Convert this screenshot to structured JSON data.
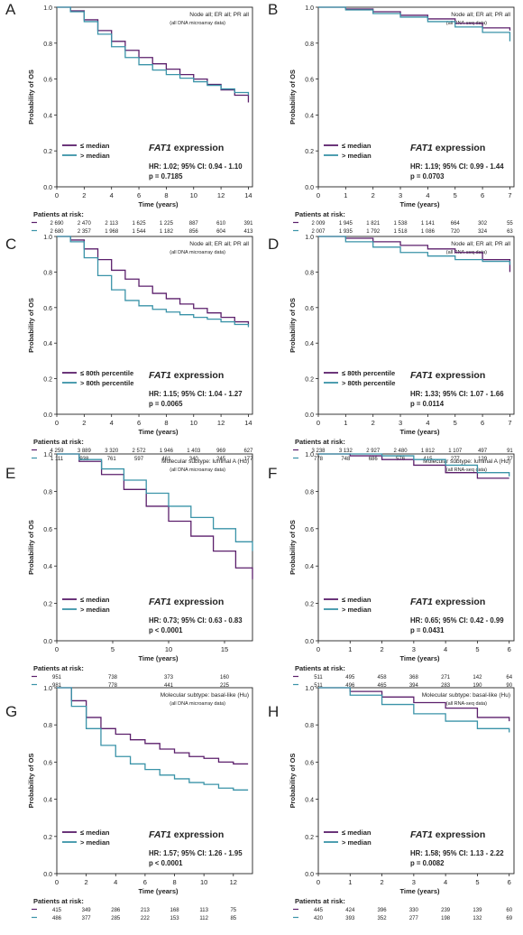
{
  "figure": {
    "expression_word": "expression",
    "colors": {
      "purple": "#5b1f6b",
      "teal": "#3a93a8"
    }
  },
  "chart_data": [
    {
      "id": "A",
      "letter": "A",
      "type": "line",
      "title_line1": "Node all; ER all; PR all",
      "title_line2": "(all DNA microarray data)",
      "xlabel": "Time (years)",
      "ylabel": "Probability of OS",
      "xlim": [
        0,
        14.3
      ],
      "ylim": [
        0,
        1
      ],
      "xticks": [
        0,
        2,
        4,
        6,
        8,
        10,
        12,
        14
      ],
      "yticks": [
        0,
        0.2,
        0.4,
        0.6,
        0.8,
        1.0
      ],
      "ytick_labels": [
        "0.0",
        "0.2",
        "0.4",
        "0.6",
        "0.8",
        "1.0"
      ],
      "series": [
        {
          "name": "≤ median",
          "color": "#5b1f6b",
          "x": [
            0,
            1,
            2,
            3,
            4,
            5,
            6,
            7,
            8,
            9,
            10,
            11,
            12,
            13,
            14
          ],
          "y": [
            1,
            0.98,
            0.93,
            0.87,
            0.81,
            0.76,
            0.72,
            0.685,
            0.655,
            0.625,
            0.6,
            0.57,
            0.54,
            0.51,
            0.47
          ]
        },
        {
          "name": "> median",
          "color": "#3a93a8",
          "x": [
            0,
            1,
            2,
            3,
            4,
            5,
            6,
            7,
            8,
            9,
            10,
            11,
            12,
            13,
            14
          ],
          "y": [
            1,
            0.975,
            0.92,
            0.85,
            0.78,
            0.72,
            0.68,
            0.65,
            0.625,
            0.605,
            0.585,
            0.565,
            0.545,
            0.525,
            0.51
          ]
        }
      ],
      "gene": "FAT1",
      "hr": "HR: 1.02; 95% CI: 0.94 - 1.10",
      "p": "p = 0.7185",
      "risk_row1": [
        "2 690",
        "2 470",
        "2 113",
        "1 625",
        "1 225",
        "887",
        "610",
        "391"
      ],
      "risk_row2": [
        "2 680",
        "2 357",
        "1 968",
        "1 544",
        "1 182",
        "856",
        "604",
        "413"
      ]
    },
    {
      "id": "B",
      "letter": "B",
      "type": "line",
      "title_line1": "Node all; ER all; PR all",
      "title_line2": "(all RNA-seq data)",
      "xlabel": "Time (years)",
      "ylabel": "Probability of OS",
      "xlim": [
        0,
        7.15
      ],
      "ylim": [
        0,
        1
      ],
      "xticks": [
        0,
        1,
        2,
        3,
        4,
        5,
        6,
        7
      ],
      "yticks": [
        0,
        0.2,
        0.4,
        0.6,
        0.8,
        1.0
      ],
      "ytick_labels": [
        "0.0",
        "0.2",
        "0.4",
        "0.6",
        "0.8",
        "1.0"
      ],
      "series": [
        {
          "name": "≤ median",
          "color": "#5b1f6b",
          "x": [
            0,
            1,
            2,
            3,
            4,
            5,
            6,
            7
          ],
          "y": [
            1,
            0.99,
            0.975,
            0.955,
            0.935,
            0.91,
            0.885,
            0.87
          ]
        },
        {
          "name": "> median",
          "color": "#3a93a8",
          "x": [
            0,
            1,
            2,
            3,
            4,
            5,
            6,
            7
          ],
          "y": [
            1,
            0.985,
            0.965,
            0.945,
            0.92,
            0.89,
            0.86,
            0.81
          ]
        }
      ],
      "gene": "FAT1",
      "hr": "HR: 1.19; 95% CI: 0.99 - 1.44",
      "p": "p = 0.0703",
      "risk_row1": [
        "2 009",
        "1 945",
        "1 821",
        "1 538",
        "1 141",
        "664",
        "302",
        "55"
      ],
      "risk_row2": [
        "2 007",
        "1 935",
        "1 792",
        "1 518",
        "1 086",
        "720",
        "324",
        "63"
      ]
    },
    {
      "id": "C",
      "letter": "C",
      "type": "line",
      "title_line1": "Node all; ER all; PR all",
      "title_line2": "(all DNA microarray data)",
      "xlabel": "Time (years)",
      "ylabel": "Probability of OS",
      "xlim": [
        0,
        14.3
      ],
      "ylim": [
        0,
        1
      ],
      "xticks": [
        0,
        2,
        4,
        6,
        8,
        10,
        12,
        14
      ],
      "yticks": [
        0,
        0.2,
        0.4,
        0.6,
        0.8,
        1.0
      ],
      "ytick_labels": [
        "0.0",
        "0.2",
        "0.4",
        "0.6",
        "0.8",
        "1.0"
      ],
      "series": [
        {
          "name": "≤ 80th percentile",
          "color": "#5b1f6b",
          "x": [
            0,
            1,
            2,
            3,
            4,
            5,
            6,
            7,
            8,
            9,
            10,
            11,
            12,
            13,
            14
          ],
          "y": [
            1,
            0.98,
            0.93,
            0.87,
            0.81,
            0.76,
            0.72,
            0.68,
            0.65,
            0.62,
            0.595,
            0.57,
            0.545,
            0.52,
            0.5
          ]
        },
        {
          "name": "> 80th percentile",
          "color": "#3a93a8",
          "x": [
            0,
            1,
            2,
            3,
            4,
            5,
            6,
            7,
            8,
            9,
            10,
            11,
            12,
            13,
            14
          ],
          "y": [
            1,
            0.97,
            0.88,
            0.78,
            0.7,
            0.64,
            0.61,
            0.59,
            0.575,
            0.56,
            0.545,
            0.535,
            0.52,
            0.505,
            0.49
          ]
        }
      ],
      "gene": "FAT1",
      "hr": "HR: 1.15; 95% CI: 1.04 - 1.27",
      "p": "p = 0.0065",
      "risk_row1": [
        "4 259",
        "3 889",
        "3 320",
        "2 572",
        "1 946",
        "1 403",
        "969",
        "627"
      ],
      "risk_row2": [
        "1 111",
        "938",
        "761",
        "597",
        "461",
        "340",
        "245",
        "177"
      ]
    },
    {
      "id": "D",
      "letter": "D",
      "type": "line",
      "title_line1": "Node all; ER all; PR all",
      "title_line2": "(all RNA-seq data)",
      "xlabel": "Time (years)",
      "ylabel": "Probability of OS",
      "xlim": [
        0,
        7.15
      ],
      "ylim": [
        0,
        1
      ],
      "xticks": [
        0,
        1,
        2,
        3,
        4,
        5,
        6,
        7
      ],
      "yticks": [
        0,
        0.2,
        0.4,
        0.6,
        0.8,
        1.0
      ],
      "ytick_labels": [
        "0.0",
        "0.2",
        "0.4",
        "0.6",
        "0.8",
        "1.0"
      ],
      "series": [
        {
          "name": "≤ 80th percentile",
          "color": "#5b1f6b",
          "x": [
            0,
            1,
            2,
            3,
            4,
            5,
            6,
            7
          ],
          "y": [
            1,
            0.99,
            0.97,
            0.95,
            0.93,
            0.91,
            0.87,
            0.8
          ]
        },
        {
          "name": "> 80th percentile",
          "color": "#3a93a8",
          "x": [
            0,
            1,
            2,
            3,
            4,
            5,
            6,
            7
          ],
          "y": [
            1,
            0.97,
            0.94,
            0.91,
            0.89,
            0.87,
            0.86,
            0.84
          ]
        }
      ],
      "gene": "FAT1",
      "hr": "HR: 1.33; 95% CI: 1.07 - 1.66",
      "p": "p = 0.0114",
      "risk_row1": [
        "3 238",
        "3 132",
        "2 927",
        "2 480",
        "1 812",
        "1 107",
        "497",
        "91"
      ],
      "risk_row2": [
        "778",
        "748",
        "686",
        "576",
        "415",
        "277",
        "129",
        "27"
      ]
    },
    {
      "id": "E",
      "letter": "E",
      "type": "line",
      "title_line1": "Molecular subtype: luminal A (Hu)",
      "title_line2": "(all DNA microarray data)",
      "xlabel": "Time (years)",
      "ylabel": "Probability of OS",
      "xlim": [
        0,
        17.5
      ],
      "ylim": [
        0,
        1
      ],
      "xticks": [
        0,
        5,
        10,
        15
      ],
      "yticks": [
        0,
        0.2,
        0.4,
        0.6,
        0.8,
        1.0
      ],
      "ytick_labels": [
        "0.0",
        "0.2",
        "0.4",
        "0.6",
        "0.8",
        "1.0"
      ],
      "series": [
        {
          "name": "≤ median",
          "color": "#5b1f6b",
          "x": [
            0,
            2,
            4,
            6,
            8,
            10,
            12,
            14,
            16,
            17.5
          ],
          "y": [
            1,
            0.96,
            0.89,
            0.81,
            0.72,
            0.64,
            0.56,
            0.48,
            0.39,
            0.33
          ]
        },
        {
          "name": "> median",
          "color": "#3a93a8",
          "x": [
            0,
            2,
            4,
            6,
            8,
            10,
            12,
            14,
            16,
            17.5
          ],
          "y": [
            1,
            0.97,
            0.92,
            0.86,
            0.79,
            0.72,
            0.66,
            0.6,
            0.53,
            0.48
          ]
        }
      ],
      "gene": "FAT1",
      "hr": "HR: 0.73; 95% CI: 0.63 - 0.83",
      "p": "p < 0.0001",
      "risk_row1": [
        "951",
        "738",
        "373",
        "160"
      ],
      "risk_row2": [
        "981",
        "778",
        "441",
        "225"
      ]
    },
    {
      "id": "F",
      "letter": "F",
      "type": "line",
      "title_line1": "Molecular subtype: luminal A (Hu)",
      "title_line2": "(all RNA-seq data)",
      "xlabel": "Time (years)",
      "ylabel": "Probability of OS",
      "xlim": [
        0,
        6.15
      ],
      "ylim": [
        0,
        1
      ],
      "xticks": [
        0,
        1,
        2,
        3,
        4,
        5,
        6
      ],
      "yticks": [
        0,
        0.2,
        0.4,
        0.6,
        0.8,
        1.0
      ],
      "ytick_labels": [
        "0.0",
        "0.2",
        "0.4",
        "0.6",
        "0.8",
        "1.0"
      ],
      "series": [
        {
          "name": "≤ median",
          "color": "#5b1f6b",
          "x": [
            0,
            1,
            2,
            3,
            4,
            5,
            6
          ],
          "y": [
            1,
            0.99,
            0.97,
            0.94,
            0.9,
            0.87,
            0.87
          ]
        },
        {
          "name": "> median",
          "color": "#3a93a8",
          "x": [
            0,
            1,
            2,
            3,
            4,
            5,
            6
          ],
          "y": [
            1,
            1,
            0.99,
            0.97,
            0.94,
            0.9,
            0.88
          ]
        }
      ],
      "gene": "FAT1",
      "hr": "HR: 0.65; 95% CI: 0.42 - 0.99",
      "p": "p = 0.0431",
      "risk_row1": [
        "511",
        "495",
        "458",
        "368",
        "271",
        "142",
        "64"
      ],
      "risk_row2": [
        "511",
        "496",
        "465",
        "394",
        "283",
        "190",
        "90"
      ]
    },
    {
      "id": "G",
      "letter": "G",
      "type": "line",
      "title_line1": "Molecular subtype: basal-like (Hu)",
      "title_line2": "(all DNA microarray data)",
      "xlabel": "Time (years)",
      "ylabel": "Probability of OS",
      "xlim": [
        0,
        13.3
      ],
      "ylim": [
        0,
        1
      ],
      "xticks": [
        0,
        2,
        4,
        6,
        8,
        10,
        12
      ],
      "yticks": [
        0,
        0.2,
        0.4,
        0.6,
        0.8,
        1.0
      ],
      "ytick_labels": [
        "0.0",
        "0.2",
        "0.4",
        "0.6",
        "0.8",
        "1.0"
      ],
      "series": [
        {
          "name": "≤ median",
          "color": "#5b1f6b",
          "x": [
            0,
            1,
            2,
            3,
            4,
            5,
            6,
            7,
            8,
            9,
            10,
            11,
            12,
            13
          ],
          "y": [
            1,
            0.93,
            0.84,
            0.78,
            0.75,
            0.72,
            0.7,
            0.67,
            0.65,
            0.63,
            0.62,
            0.6,
            0.59,
            0.59
          ]
        },
        {
          "name": "> median",
          "color": "#3a93a8",
          "x": [
            0,
            1,
            2,
            3,
            4,
            5,
            6,
            7,
            8,
            9,
            10,
            11,
            12,
            13
          ],
          "y": [
            1,
            0.9,
            0.78,
            0.69,
            0.63,
            0.59,
            0.56,
            0.53,
            0.51,
            0.49,
            0.48,
            0.46,
            0.45,
            0.45
          ]
        }
      ],
      "gene": "FAT1",
      "hr": "HR: 1.57; 95% CI: 1.26 - 1.95",
      "p": "p < 0.0001",
      "risk_row1": [
        "415",
        "349",
        "286",
        "213",
        "168",
        "113",
        "75"
      ],
      "risk_row2": [
        "486",
        "377",
        "285",
        "222",
        "153",
        "112",
        "85"
      ]
    },
    {
      "id": "H",
      "letter": "H",
      "type": "line",
      "title_line1": "Molecular subtype: basal-like (Hu)",
      "title_line2": "(all RNA-seq data)",
      "xlabel": "Time (years)",
      "ylabel": "Probability of OS",
      "xlim": [
        0,
        6.15
      ],
      "ylim": [
        0,
        1
      ],
      "xticks": [
        0,
        1,
        2,
        3,
        4,
        5,
        6
      ],
      "yticks": [
        0,
        0.2,
        0.4,
        0.6,
        0.8,
        1.0
      ],
      "ytick_labels": [
        "0.0",
        "0.2",
        "0.4",
        "0.6",
        "0.8",
        "1.0"
      ],
      "series": [
        {
          "name": "≤ median",
          "color": "#5b1f6b",
          "x": [
            0,
            1,
            2,
            3,
            4,
            5,
            6
          ],
          "y": [
            1,
            0.98,
            0.95,
            0.92,
            0.89,
            0.84,
            0.82
          ]
        },
        {
          "name": "> median",
          "color": "#3a93a8",
          "x": [
            0,
            1,
            2,
            3,
            4,
            5,
            6
          ],
          "y": [
            1,
            0.96,
            0.91,
            0.86,
            0.82,
            0.78,
            0.76
          ]
        }
      ],
      "gene": "FAT1",
      "hr": "HR: 1.58; 95% CI: 1.13 - 2.22",
      "p": "p = 0.0082",
      "risk_row1": [
        "445",
        "424",
        "396",
        "330",
        "239",
        "139",
        "60"
      ],
      "risk_row2": [
        "420",
        "393",
        "352",
        "277",
        "198",
        "132",
        "69"
      ]
    }
  ],
  "risk_label": "Patients at risk:"
}
